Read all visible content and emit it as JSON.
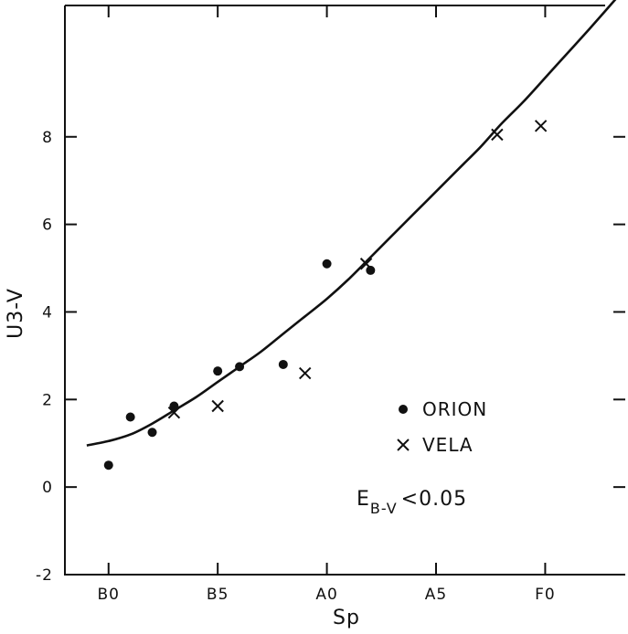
{
  "chart_data": {
    "type": "scatter",
    "title": "",
    "xlabel": "Sp",
    "ylabel": "U3-V",
    "x_ticks": [
      {
        "value": 0,
        "label": "B0"
      },
      {
        "value": 5,
        "label": "B5"
      },
      {
        "value": 10,
        "label": "A0"
      },
      {
        "value": 15,
        "label": "A5"
      },
      {
        "value": 20,
        "label": "F0"
      }
    ],
    "y_ticks": [
      {
        "value": -2,
        "label": "-2"
      },
      {
        "value": 0,
        "label": "0"
      },
      {
        "value": 2,
        "label": "2"
      },
      {
        "value": 4,
        "label": "4"
      },
      {
        "value": 6,
        "label": "6"
      },
      {
        "value": 8,
        "label": "8"
      }
    ],
    "xlim": [
      -2,
      23.5
    ],
    "ylim": [
      -2,
      11
    ],
    "grid": false,
    "legend_position": "lower-right",
    "series": [
      {
        "name": "ORION",
        "marker": "dot",
        "points": [
          {
            "x": 0,
            "y": 0.5
          },
          {
            "x": 1,
            "y": 1.6
          },
          {
            "x": 2,
            "y": 1.25
          },
          {
            "x": 3,
            "y": 1.85
          },
          {
            "x": 5,
            "y": 2.65
          },
          {
            "x": 6,
            "y": 2.75
          },
          {
            "x": 8,
            "y": 2.8
          },
          {
            "x": 10,
            "y": 5.1
          },
          {
            "x": 12,
            "y": 4.95
          }
        ]
      },
      {
        "name": "VELA",
        "marker": "cross",
        "points": [
          {
            "x": 3,
            "y": 1.7
          },
          {
            "x": 5,
            "y": 1.85
          },
          {
            "x": 9,
            "y": 2.6
          },
          {
            "x": 11.8,
            "y": 5.1
          },
          {
            "x": 17.8,
            "y": 8.05
          },
          {
            "x": 19.8,
            "y": 8.25
          }
        ]
      }
    ],
    "fit_curve": [
      {
        "x": -1,
        "y": 0.95
      },
      {
        "x": 0,
        "y": 1.05
      },
      {
        "x": 1,
        "y": 1.2
      },
      {
        "x": 2,
        "y": 1.45
      },
      {
        "x": 3,
        "y": 1.75
      },
      {
        "x": 4,
        "y": 2.05
      },
      {
        "x": 5,
        "y": 2.4
      },
      {
        "x": 6,
        "y": 2.75
      },
      {
        "x": 7,
        "y": 3.1
      },
      {
        "x": 8,
        "y": 3.5
      },
      {
        "x": 9,
        "y": 3.9
      },
      {
        "x": 10,
        "y": 4.3
      },
      {
        "x": 11,
        "y": 4.75
      },
      {
        "x": 12,
        "y": 5.25
      },
      {
        "x": 13,
        "y": 5.75
      },
      {
        "x": 14,
        "y": 6.25
      },
      {
        "x": 15,
        "y": 6.75
      },
      {
        "x": 16,
        "y": 7.25
      },
      {
        "x": 17,
        "y": 7.75
      },
      {
        "x": 18,
        "y": 8.3
      },
      {
        "x": 19,
        "y": 8.8
      },
      {
        "x": 20,
        "y": 9.35
      },
      {
        "x": 21,
        "y": 9.9
      },
      {
        "x": 22,
        "y": 10.45
      },
      {
        "x": 23.5,
        "y": 11.3
      }
    ],
    "annotation": {
      "main": "E",
      "subscript": "B-V",
      "rest": "<0.05"
    }
  }
}
